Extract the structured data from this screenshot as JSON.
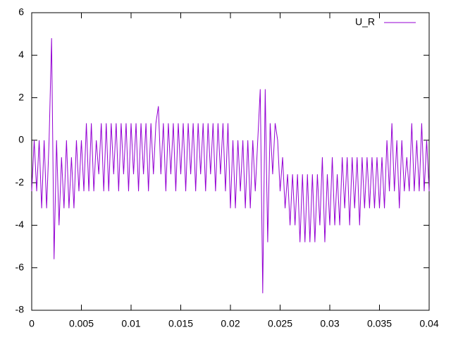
{
  "chart_data": {
    "type": "line",
    "x": [
      0,
      0.00025,
      0.0005,
      0.00075,
      0.001,
      0.00125,
      0.0015,
      0.00175,
      0.002,
      0.00225,
      0.0025,
      0.00275,
      0.003,
      0.00325,
      0.0035,
      0.00375,
      0.004,
      0.00425,
      0.0045,
      0.00475,
      0.005,
      0.00525,
      0.0055,
      0.00575,
      0.006,
      0.00625,
      0.0065,
      0.00675,
      0.007,
      0.00725,
      0.0075,
      0.00775,
      0.008,
      0.00825,
      0.0085,
      0.00875,
      0.009,
      0.00925,
      0.0095,
      0.00975,
      0.01,
      0.01025,
      0.0105,
      0.01075,
      0.011,
      0.01125,
      0.0115,
      0.01175,
      0.012,
      0.01225,
      0.0125,
      0.01275,
      0.013,
      0.01325,
      0.0135,
      0.01375,
      0.014,
      0.01425,
      0.0145,
      0.01475,
      0.015,
      0.01525,
      0.0155,
      0.01575,
      0.016,
      0.01625,
      0.0165,
      0.01675,
      0.017,
      0.01725,
      0.0175,
      0.01775,
      0.018,
      0.01825,
      0.0185,
      0.01875,
      0.019,
      0.01925,
      0.0195,
      0.01975,
      0.02,
      0.02025,
      0.0205,
      0.02075,
      0.021,
      0.02125,
      0.0215,
      0.02175,
      0.022,
      0.02225,
      0.0225,
      0.02275,
      0.023,
      0.02325,
      0.0235,
      0.02375,
      0.024,
      0.02425,
      0.0245,
      0.02475,
      0.025,
      0.02525,
      0.0255,
      0.02575,
      0.026,
      0.02625,
      0.0265,
      0.02675,
      0.027,
      0.02725,
      0.0275,
      0.02775,
      0.028,
      0.02825,
      0.0285,
      0.02875,
      0.029,
      0.02925,
      0.0295,
      0.02975,
      0.03,
      0.03025,
      0.0305,
      0.03075,
      0.031,
      0.03125,
      0.0315,
      0.03175,
      0.032,
      0.03225,
      0.0325,
      0.03275,
      0.033,
      0.03325,
      0.0335,
      0.03375,
      0.034,
      0.03425,
      0.0345,
      0.03475,
      0.035,
      0.03525,
      0.0355,
      0.03575,
      0.036,
      0.03625,
      0.0365,
      0.03675,
      0.037,
      0.03725,
      0.0375,
      0.03775,
      0.038,
      0.03825,
      0.0385,
      0.03875,
      0.039,
      0.03925,
      0.0395,
      0.03975,
      0.04
    ],
    "series": [
      {
        "name": "U_R",
        "color": "#9400d3",
        "values": [
          -2.4,
          0,
          -2.4,
          0,
          -3.2,
          0,
          -3.2,
          0,
          4.8,
          -5.6,
          0,
          -4,
          -0.8,
          -3.2,
          0,
          -3.2,
          -0.8,
          -3.2,
          0,
          -2.4,
          0,
          -2.4,
          0.8,
          -2.4,
          0.8,
          -2.4,
          0,
          -1.6,
          0.8,
          -2.4,
          0.8,
          -2.4,
          0.8,
          -1.6,
          0.8,
          -2.4,
          0.8,
          -1.6,
          0.8,
          -2.4,
          0.8,
          -1.6,
          0.8,
          -2.4,
          0.8,
          -1.6,
          0.8,
          -2.4,
          0.8,
          -1.6,
          0.8,
          1.6,
          -1.6,
          0.8,
          -2.4,
          0.8,
          -1.6,
          0.8,
          -2.4,
          0.8,
          -1.6,
          0.8,
          -2.4,
          0.8,
          -1.6,
          0.8,
          -2.4,
          0.8,
          -1.6,
          0.8,
          -2.4,
          0.8,
          -1.6,
          0.8,
          -2.4,
          0.8,
          -1.6,
          0.8,
          -2.4,
          0.8,
          -3.2,
          0,
          -3.2,
          0,
          -2.4,
          0,
          -3.2,
          0,
          -3.2,
          0,
          -2.4,
          0,
          2.4,
          -7.2,
          2.4,
          -4.8,
          0.8,
          -1.6,
          0.8,
          0,
          -2.4,
          -0.8,
          -3.2,
          -1.6,
          -4,
          -1.6,
          -4,
          -1.6,
          -4.8,
          -1.6,
          -4.8,
          -1.6,
          -4.8,
          -1.6,
          -4.8,
          -1.6,
          -4,
          -0.8,
          -4.8,
          -1.6,
          -4,
          -0.8,
          -4,
          -1.6,
          -4,
          -0.8,
          -3.2,
          -0.8,
          -4,
          -0.8,
          -3.2,
          -0.8,
          -4,
          -0.8,
          -3.2,
          -0.8,
          -3.2,
          -0.8,
          -3.2,
          -0.8,
          -3.2,
          -0.8,
          -3.2,
          0,
          -2.4,
          0.8,
          -2.4,
          0,
          -3.2,
          0,
          -2.4,
          -0.8,
          -2.4,
          0.8,
          -2.4,
          0,
          -2.4,
          0.8,
          -2.4,
          0,
          -2.4
        ]
      }
    ],
    "xlim": [
      0,
      0.04
    ],
    "xticks": [
      0,
      0.005,
      0.01,
      0.015,
      0.02,
      0.025,
      0.03,
      0.035,
      0.04
    ],
    "ylim": [
      -8,
      6
    ],
    "yticks": [
      -8,
      -6,
      -4,
      -2,
      0,
      2,
      4,
      6
    ],
    "legend": "top-right"
  }
}
